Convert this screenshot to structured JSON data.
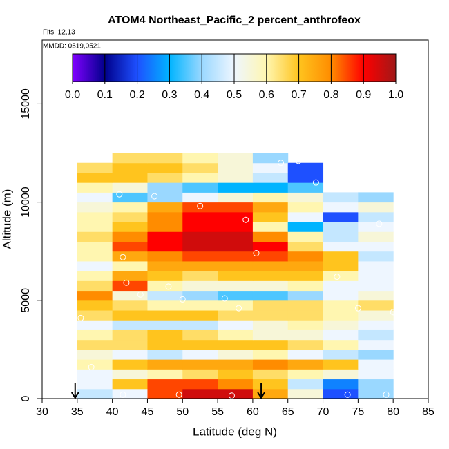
{
  "chart_data": {
    "type": "heatmap",
    "title": "ATOM4 Northeast_Pacific_2 percent_anthrofeox",
    "subtitles": [
      "Flts: 12,13",
      "MMDD: 0519,0521"
    ],
    "x_label": "Latitude (deg N)",
    "y_label": "Altitude (m)",
    "xlim": [
      30,
      85
    ],
    "ylim": [
      0,
      18250
    ],
    "xticks": [
      30,
      35,
      40,
      45,
      50,
      55,
      60,
      65,
      70,
      75,
      80,
      85
    ],
    "yticks": [
      0,
      5000,
      10000,
      15000
    ],
    "zlim": [
      0,
      1
    ],
    "colorbar_ticks": [
      {
        "value": 0,
        "label": "0.0"
      },
      0.1,
      0.2,
      0.3,
      0.4,
      0.5,
      0.6,
      0.7,
      0.8,
      0.9,
      {
        "value": 1,
        "label": "1.0"
      }
    ],
    "colormap": [
      "#8000ff",
      "#00008b",
      "#1e50ff",
      "#00b4ff",
      "#9ad8ff",
      "#eef6ff",
      "#fff6b0",
      "#ffc41e",
      "#ff8c00",
      "#ff0000",
      "#a01818"
    ],
    "x_edges": [
      35,
      40,
      45,
      50,
      55,
      60,
      65,
      70,
      75,
      80
    ],
    "y_edges": [
      0,
      500,
      1000,
      1500,
      2000,
      2500,
      3000,
      3500,
      4000,
      4500,
      5000,
      5500,
      6000,
      6500,
      7000,
      7500,
      8000,
      8500,
      9000,
      9500,
      10000,
      10500,
      11000,
      11500,
      12000,
      12500
    ],
    "z": [
      [
        0.45,
        0.5,
        0.85,
        0.95,
        0.95,
        0.75,
        0.55,
        0.2,
        0.4
      ],
      [
        0.5,
        0.7,
        0.85,
        0.85,
        0.8,
        0.7,
        0.45,
        0.25,
        0.4
      ],
      [
        0.5,
        0.55,
        0.6,
        0.65,
        0.7,
        0.65,
        0.6,
        0.55,
        0.5
      ],
      [
        0.6,
        0.7,
        0.75,
        0.75,
        0.75,
        0.8,
        0.75,
        0.7,
        0.5
      ],
      [
        0.55,
        0.5,
        0.45,
        0.5,
        0.55,
        0.6,
        0.5,
        0.45,
        0.4
      ],
      [
        0.65,
        0.65,
        0.7,
        0.7,
        0.7,
        0.7,
        0.65,
        0.6,
        0.5
      ],
      [
        0.6,
        0.65,
        0.7,
        0.65,
        0.6,
        0.55,
        0.55,
        0.5,
        0.45
      ],
      [
        0.5,
        0.45,
        0.45,
        0.45,
        0.5,
        0.55,
        0.6,
        0.55,
        0.5
      ],
      [
        0.65,
        0.7,
        0.7,
        0.7,
        0.65,
        0.65,
        0.65,
        0.6,
        0.55
      ],
      [
        0.7,
        0.65,
        0.6,
        0.6,
        0.6,
        0.65,
        0.65,
        0.6,
        0.65
      ],
      [
        0.8,
        0.55,
        0.45,
        0.4,
        0.35,
        0.35,
        0.4,
        0.5,
        0.55
      ],
      [
        0.65,
        0.85,
        0.6,
        0.55,
        0.55,
        0.55,
        0.6,
        0.5,
        0.5
      ],
      [
        0.6,
        0.75,
        0.7,
        0.65,
        0.7,
        0.7,
        0.7,
        0.6,
        0.5
      ],
      [
        0.5,
        0.6,
        0.75,
        0.75,
        0.75,
        0.75,
        0.75,
        0.7,
        0.5
      ],
      [
        0.6,
        0.75,
        0.8,
        0.85,
        0.85,
        0.85,
        0.8,
        0.7,
        0.45
      ],
      [
        0.6,
        0.85,
        0.9,
        0.95,
        0.95,
        0.9,
        0.65,
        0.5,
        0.5
      ],
      [
        0.65,
        0.8,
        0.9,
        0.95,
        0.95,
        0.8,
        0.6,
        0.45,
        0.55
      ],
      [
        0.6,
        0.7,
        0.8,
        0.9,
        0.9,
        0.6,
        0.3,
        0.45,
        0.5
      ],
      [
        0.6,
        0.65,
        0.8,
        0.9,
        0.9,
        0.7,
        0.5,
        0.2,
        0.45
      ],
      [
        0.55,
        0.6,
        0.75,
        0.85,
        0.85,
        0.75,
        0.6,
        0.5,
        0.55
      ],
      [
        0.5,
        0.35,
        0.4,
        0.5,
        0.55,
        0.6,
        0.55,
        0.45,
        0.4
      ],
      [
        0.6,
        0.55,
        0.4,
        0.35,
        0.3,
        0.3,
        0.35,
        null,
        null
      ],
      [
        0.7,
        0.7,
        0.65,
        0.6,
        0.55,
        0.45,
        0.2,
        null,
        null
      ],
      [
        0.65,
        0.7,
        0.7,
        0.65,
        0.55,
        0.5,
        0.2,
        null,
        null
      ],
      [
        null,
        0.65,
        0.65,
        0.6,
        0.55,
        0.4,
        null,
        null,
        null
      ]
    ],
    "points": {
      "x": [
        39.5,
        41,
        46,
        52.5,
        59,
        60.5,
        41.5,
        42,
        44,
        48,
        50,
        56,
        58,
        35.5,
        72,
        75,
        80,
        78,
        64,
        66.5,
        69,
        41.5,
        49.5,
        57,
        73.5,
        79,
        37
      ],
      "y": [
        12200,
        10400,
        10300,
        9800,
        9100,
        7400,
        7200,
        5900,
        5300,
        5700,
        5050,
        5100,
        4600,
        4100,
        6200,
        4600,
        4400,
        8900,
        12000,
        12100,
        11000,
        200,
        200,
        150,
        200,
        200,
        1600
      ]
    },
    "arrows_x": [
      34.7,
      61.2
    ]
  }
}
